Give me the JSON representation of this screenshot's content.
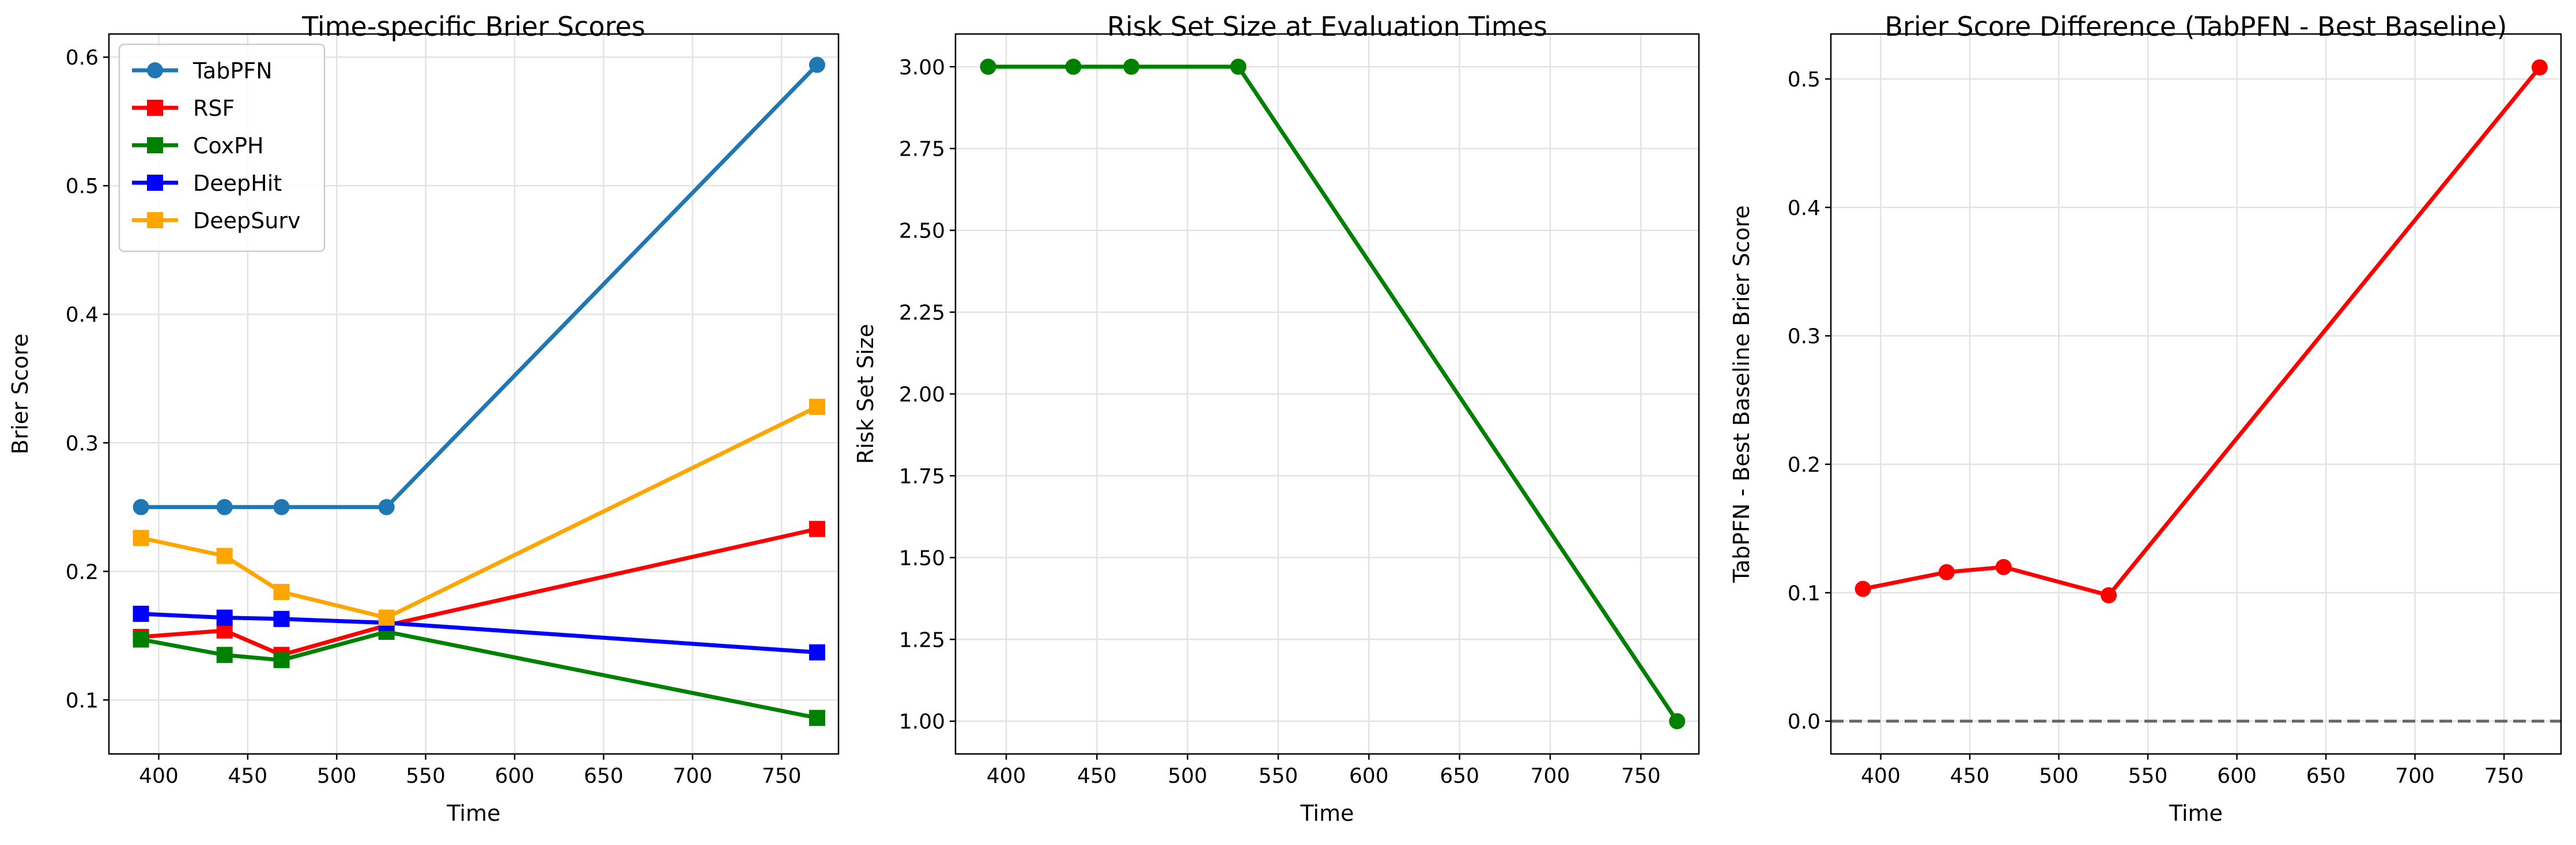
{
  "chart_data": [
    {
      "type": "line",
      "title": "Time-specific Brier Scores",
      "xlabel": "Time",
      "ylabel": "Brier Score",
      "xlim": [
        372,
        782
      ],
      "ylim": [
        0.058,
        0.618
      ],
      "xticks": [
        400,
        450,
        500,
        550,
        600,
        650,
        700,
        750
      ],
      "yticks": [
        0.1,
        0.2,
        0.3,
        0.4,
        0.5,
        0.6
      ],
      "ytick_decimals": 1,
      "grid": true,
      "legend": "top-left",
      "x": [
        390,
        437,
        469,
        528,
        770
      ],
      "series": [
        {
          "name": "TabPFN",
          "values": [
            0.25,
            0.25,
            0.25,
            0.25,
            0.594
          ],
          "color": "#1f77b4",
          "marker": "circle"
        },
        {
          "name": "RSF",
          "values": [
            0.149,
            0.154,
            0.135,
            0.158,
            0.233
          ],
          "color": "#ff0000",
          "marker": "square"
        },
        {
          "name": "CoxPH",
          "values": [
            0.147,
            0.135,
            0.131,
            0.153,
            0.086
          ],
          "color": "#008000",
          "marker": "square"
        },
        {
          "name": "DeepHit",
          "values": [
            0.167,
            0.164,
            0.163,
            0.16,
            0.137
          ],
          "color": "#0000ff",
          "marker": "square"
        },
        {
          "name": "DeepSurv",
          "values": [
            0.226,
            0.212,
            0.184,
            0.164,
            0.328
          ],
          "color": "#ffa500",
          "marker": "square"
        }
      ]
    },
    {
      "type": "line",
      "title": "Risk Set Size at Evaluation Times",
      "xlabel": "Time",
      "ylabel": "Risk Set Size",
      "xlim": [
        372,
        782
      ],
      "ylim": [
        0.9,
        3.1
      ],
      "xticks": [
        400,
        450,
        500,
        550,
        600,
        650,
        700,
        750
      ],
      "yticks": [
        1.0,
        1.25,
        1.5,
        1.75,
        2.0,
        2.25,
        2.5,
        2.75,
        3.0
      ],
      "ytick_decimals": 2,
      "grid": true,
      "x": [
        390,
        437,
        469,
        528,
        770
      ],
      "series": [
        {
          "name": "",
          "values": [
            3,
            3,
            3,
            3,
            1
          ],
          "color": "#008000",
          "marker": "circle"
        }
      ]
    },
    {
      "type": "line",
      "title": "Brier Score Difference (TabPFN - Best Baseline)",
      "xlabel": "Time",
      "ylabel": "TabPFN - Best Baseline Brier Score",
      "xlim": [
        372,
        782
      ],
      "ylim": [
        -0.0255,
        0.535
      ],
      "xticks": [
        400,
        450,
        500,
        550,
        600,
        650,
        700,
        750
      ],
      "yticks": [
        0.0,
        0.1,
        0.2,
        0.3,
        0.4,
        0.5
      ],
      "ytick_decimals": 1,
      "grid": true,
      "reference_line": {
        "y": 0.0,
        "style": "dashed",
        "color": "#666666"
      },
      "x": [
        390,
        437,
        469,
        528,
        770
      ],
      "series": [
        {
          "name": "",
          "values": [
            0.103,
            0.116,
            0.12,
            0.098,
            0.509
          ],
          "color": "#ff0000",
          "marker": "circle"
        }
      ]
    }
  ]
}
